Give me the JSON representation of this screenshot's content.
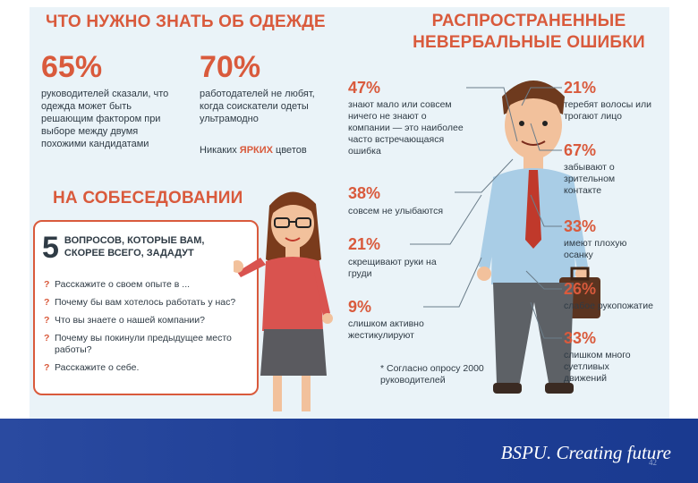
{
  "clothes": {
    "heading": "ЧТО НУЖНО ЗНАТЬ ОБ ОДЕЖДЕ",
    "stat1": {
      "value": "65%",
      "text": "руководителей сказали, что одежда может быть решающим фактором при выборе между двумя похожими кандидатами"
    },
    "stat2": {
      "value": "70%",
      "text": "работодателей не любят, когда соискатели одеты ультрамодно"
    },
    "no_bright": {
      "before": "Никаких ",
      "accent": "ЯРКИХ",
      "after": " цветов"
    }
  },
  "interview": {
    "heading": "НА СОБЕСЕДОВАНИИ",
    "card": {
      "number": "5",
      "title": "ВОПРОСОВ, КОТОРЫЕ ВАМ, СКОРЕЕ ВСЕГО, ЗАДАДУТ",
      "mark": "?",
      "questions": [
        "Расскажите о своем опыте в ...",
        "Почему бы вам хотелось работать у нас?",
        "Что вы знаете о нашей компании?",
        "Почему вы покинули предыдущее место работы?",
        "Расскажите о себе."
      ]
    }
  },
  "errors": {
    "heading": "РАСПРОСТРАНЕННЫЕ НЕВЕРБАЛЬНЫЕ ОШИБКИ",
    "left": [
      {
        "value": "47%",
        "text": "знают мало или совсем ничего не знают о компании — это наиболее часто встречающаяся ошибка"
      },
      {
        "value": "38%",
        "text": "совсем не улыбаются"
      },
      {
        "value": "21%",
        "text": "скрещивают руки на груди"
      },
      {
        "value": "9%",
        "text": "слишком активно жестикулируют"
      }
    ],
    "right": [
      {
        "value": "21%",
        "text": "теребят волосы или трогают лицо"
      },
      {
        "value": "67%",
        "text": "забывают о зрительном контакте"
      },
      {
        "value": "33%",
        "text": "имеют плохую осанку"
      },
      {
        "value": "26%",
        "text": "слабое рукопожатие"
      },
      {
        "value": "33%",
        "text": "слишком много суетливых движений"
      }
    ],
    "footnote": "* Согласно опросу 2000 руководителей"
  },
  "footer": {
    "slogan": "BSPU. Creating future",
    "page_number": "42"
  },
  "colors": {
    "accent": "#d95a3c",
    "panel_bg": "#eaf3f8",
    "footer": "#1f3f96"
  }
}
